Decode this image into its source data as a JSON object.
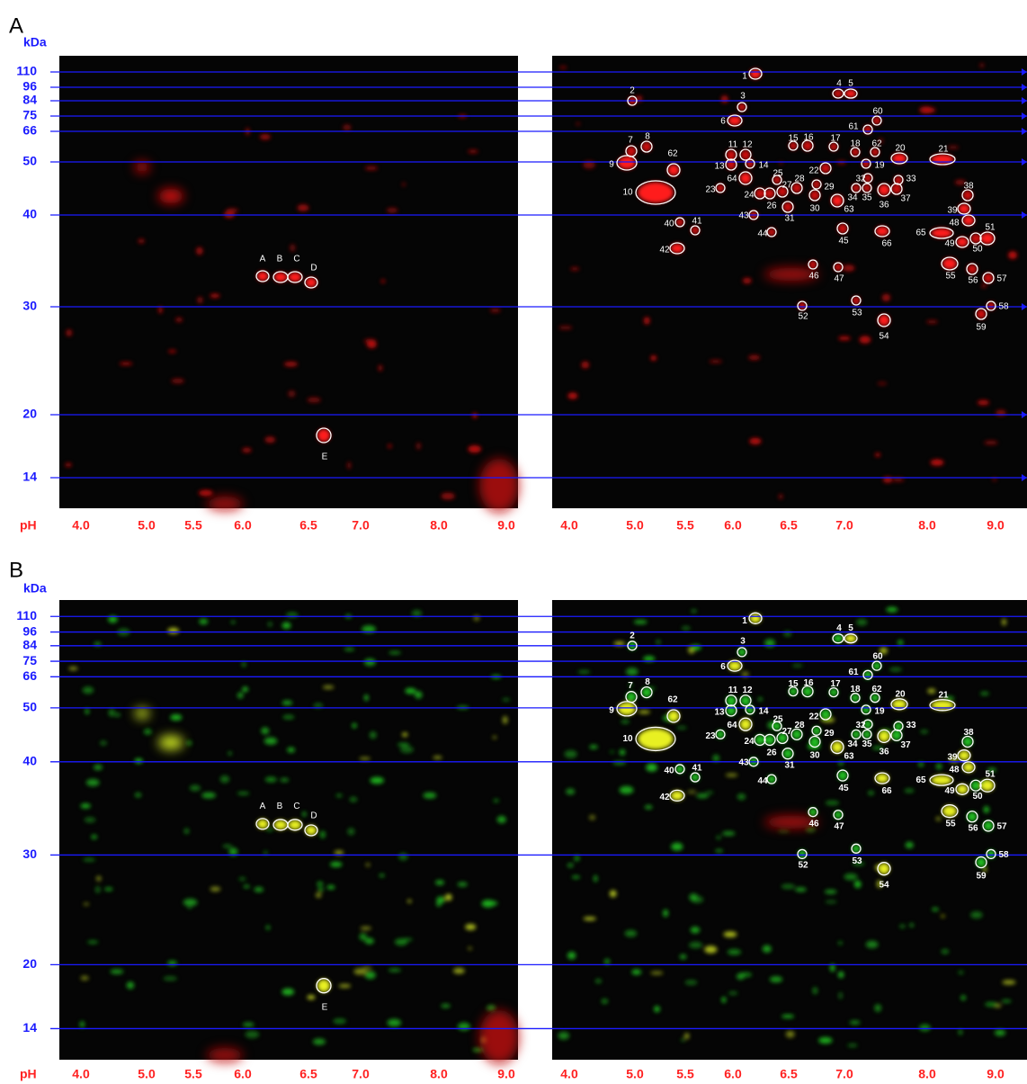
{
  "panels": [
    {
      "label": "A",
      "kda_unit": "kDa",
      "kda_ticks": [
        "110",
        "96",
        "84",
        "75",
        "66",
        "50",
        "40",
        "30",
        "20",
        "14"
      ],
      "ph_unit": "pH",
      "ph_ticks_left": [
        "4.0",
        "5.0",
        "5.5",
        "6.0",
        "6.5",
        "7.0",
        "8.0",
        "9.0"
      ],
      "ph_ticks_right": [
        "4.0",
        "5.0",
        "5.5",
        "6.0",
        "6.5",
        "7.0",
        "8.0",
        "9.0"
      ],
      "left_spots": [
        "A",
        "B",
        "C",
        "D",
        "E"
      ],
      "right_spots": [
        "1",
        "2",
        "3",
        "4",
        "5",
        "6",
        "60",
        "61",
        "7",
        "8",
        "11",
        "12",
        "15",
        "16",
        "17",
        "18",
        "62",
        "20",
        "21",
        "9",
        "62",
        "13",
        "14",
        "19",
        "22",
        "25",
        "64",
        "23",
        "27",
        "28",
        "29",
        "32",
        "33",
        "24",
        "26",
        "34",
        "35",
        "36",
        "37",
        "10",
        "30",
        "63",
        "31",
        "38",
        "39",
        "48",
        "43",
        "40",
        "41",
        "44",
        "45",
        "66",
        "65",
        "51",
        "49",
        "50",
        "42",
        "46",
        "47",
        "55",
        "56",
        "57",
        "52",
        "53",
        "58",
        "54",
        "59"
      ]
    },
    {
      "label": "B",
      "kda_unit": "kDa",
      "kda_ticks": [
        "110",
        "96",
        "84",
        "75",
        "66",
        "50",
        "40",
        "30",
        "20",
        "14"
      ],
      "ph_unit": "pH",
      "ph_ticks_left": [
        "4.0",
        "5.0",
        "5.5",
        "6.0",
        "6.5",
        "7.0",
        "8.0",
        "9.0"
      ],
      "ph_ticks_right": [
        "4.0",
        "5.0",
        "5.5",
        "6.0",
        "6.5",
        "7.0",
        "8.0",
        "9.0"
      ],
      "left_spots": [
        "A",
        "B",
        "C",
        "D",
        "E"
      ],
      "right_spots": [
        "1",
        "2",
        "3",
        "4",
        "5",
        "6",
        "60",
        "61",
        "7",
        "8",
        "11",
        "12",
        "15",
        "16",
        "17",
        "18",
        "62",
        "20",
        "21",
        "9",
        "62",
        "13",
        "14",
        "19",
        "22",
        "25",
        "64",
        "23",
        "27",
        "28",
        "29",
        "32",
        "33",
        "24",
        "26",
        "34",
        "35",
        "36",
        "37",
        "10",
        "30",
        "63",
        "31",
        "38",
        "39",
        "48",
        "43",
        "40",
        "41",
        "44",
        "45",
        "66",
        "65",
        "51",
        "49",
        "50",
        "42",
        "46",
        "47",
        "55",
        "56",
        "57",
        "52",
        "53",
        "58",
        "54",
        "59"
      ]
    }
  ]
}
